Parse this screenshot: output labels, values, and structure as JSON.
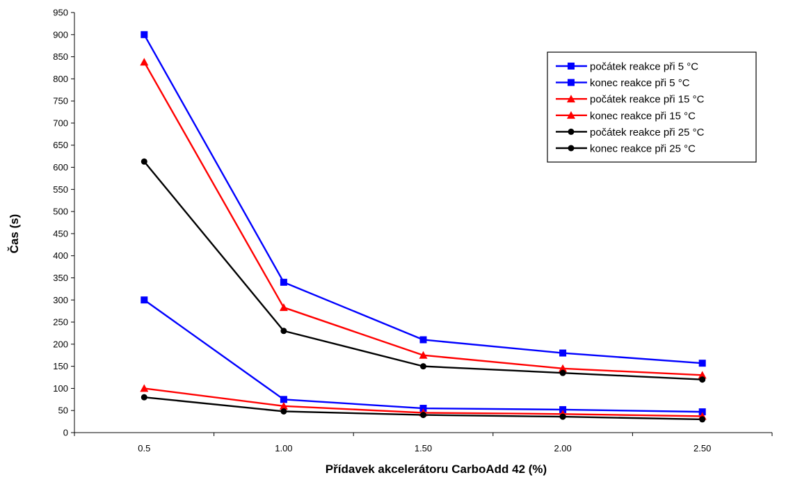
{
  "chart_data": {
    "type": "line",
    "title": "",
    "xlabel": "Přídavek akcelerátoru CarboAdd 42 (%)",
    "ylabel": "Čas (s)",
    "categories": [
      "0.5",
      "1.00",
      "1.50",
      "2.00",
      "2.50"
    ],
    "ylim": [
      0,
      950
    ],
    "yticks": [
      0,
      50,
      100,
      150,
      200,
      250,
      300,
      350,
      400,
      450,
      500,
      550,
      600,
      650,
      700,
      750,
      800,
      850,
      900,
      950
    ],
    "grid": false,
    "legend_position": "top-right",
    "series": [
      {
        "name": "počátek reakce při 5 °C",
        "color": "#0000ff",
        "marker": "square",
        "values": [
          300,
          75,
          55,
          52,
          47
        ]
      },
      {
        "name": "konec reakce při 5 °C",
        "color": "#0000ff",
        "marker": "square",
        "values": [
          900,
          340,
          210,
          180,
          157
        ]
      },
      {
        "name": "počátek reakce při 15 °C",
        "color": "#ff0000",
        "marker": "triangle",
        "values": [
          100,
          60,
          45,
          42,
          37
        ]
      },
      {
        "name": "konec reakce při 15 °C",
        "color": "#ff0000",
        "marker": "triangle",
        "values": [
          838,
          283,
          175,
          145,
          130
        ]
      },
      {
        "name": "počátek reakce při 25 °C",
        "color": "#000000",
        "marker": "circle",
        "values": [
          80,
          48,
          40,
          36,
          30
        ]
      },
      {
        "name": "konec reakce při 25 °C",
        "color": "#000000",
        "marker": "circle",
        "values": [
          613,
          230,
          150,
          135,
          120
        ]
      }
    ]
  }
}
